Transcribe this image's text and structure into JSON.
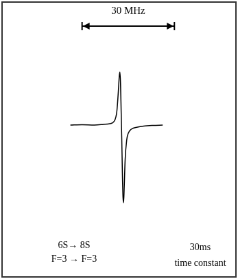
{
  "chart_data": {
    "type": "line",
    "x": [
      22.2,
      26,
      30,
      33,
      35,
      36.5,
      37.3,
      37.8,
      38.1,
      38.3,
      38.5,
      38.7,
      38.9,
      39.1,
      39.3,
      39.5,
      39.7,
      40,
      40.5,
      41,
      42,
      44,
      46,
      49,
      52.2
    ],
    "values": [
      0,
      0.5,
      0,
      1,
      2,
      6,
      20,
      50,
      72,
      77,
      60,
      20,
      -20,
      -70,
      -105,
      -113,
      -90,
      -50,
      -22,
      -12,
      -6,
      -3,
      -1.5,
      -0.5,
      0
    ],
    "color": "#000000",
    "xlim": [
      0,
      76
    ],
    "ylim": [
      -221,
      179
    ],
    "grid": false,
    "tick_labels": false,
    "scale_bar": {
      "label": "30 MHz",
      "x": [
        26,
        56
      ]
    },
    "annotations": [
      "6S→ 8S",
      "F=3 → F=3",
      "30ms",
      "time constant"
    ]
  }
}
